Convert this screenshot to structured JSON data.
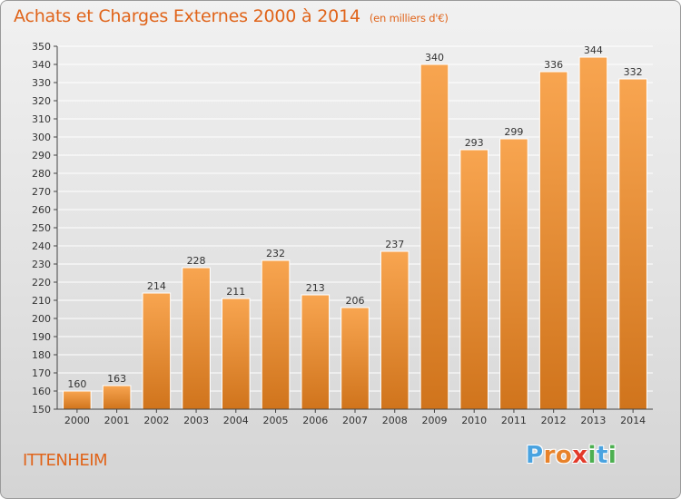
{
  "header": {
    "title": "Achats et Charges Externes 2000 à 2014",
    "subtitle": "(en milliers d'€)"
  },
  "footer": {
    "city": "ITTENHEIM",
    "logo_letters": [
      "P",
      "r",
      "o",
      "x",
      "i",
      "t",
      "i"
    ]
  },
  "colors": {
    "bar_top": "#f8a550",
    "bar_bottom": "#d0741c",
    "bar_edge": "#ffffff",
    "grid": "#ffffff",
    "axis": "#444444",
    "accent": "#e0641a",
    "logo": [
      "#4aa3e0",
      "#e8822a",
      "#e8822a",
      "#e23a2a",
      "#4caf50",
      "#4aa3e0",
      "#4caf50"
    ]
  },
  "chart_data": {
    "type": "bar",
    "title": "Achats et Charges Externes 2000 à 2014",
    "subtitle": "(en milliers d'€)",
    "categories": [
      "2000",
      "2001",
      "2002",
      "2003",
      "2004",
      "2005",
      "2006",
      "2007",
      "2008",
      "2009",
      "2010",
      "2011",
      "2012",
      "2013",
      "2014"
    ],
    "values": [
      160,
      163,
      214,
      228,
      211,
      232,
      213,
      206,
      237,
      340,
      293,
      299,
      336,
      344,
      332
    ],
    "ylim": [
      150,
      350
    ],
    "ytick_step": 10,
    "grid": true
  }
}
